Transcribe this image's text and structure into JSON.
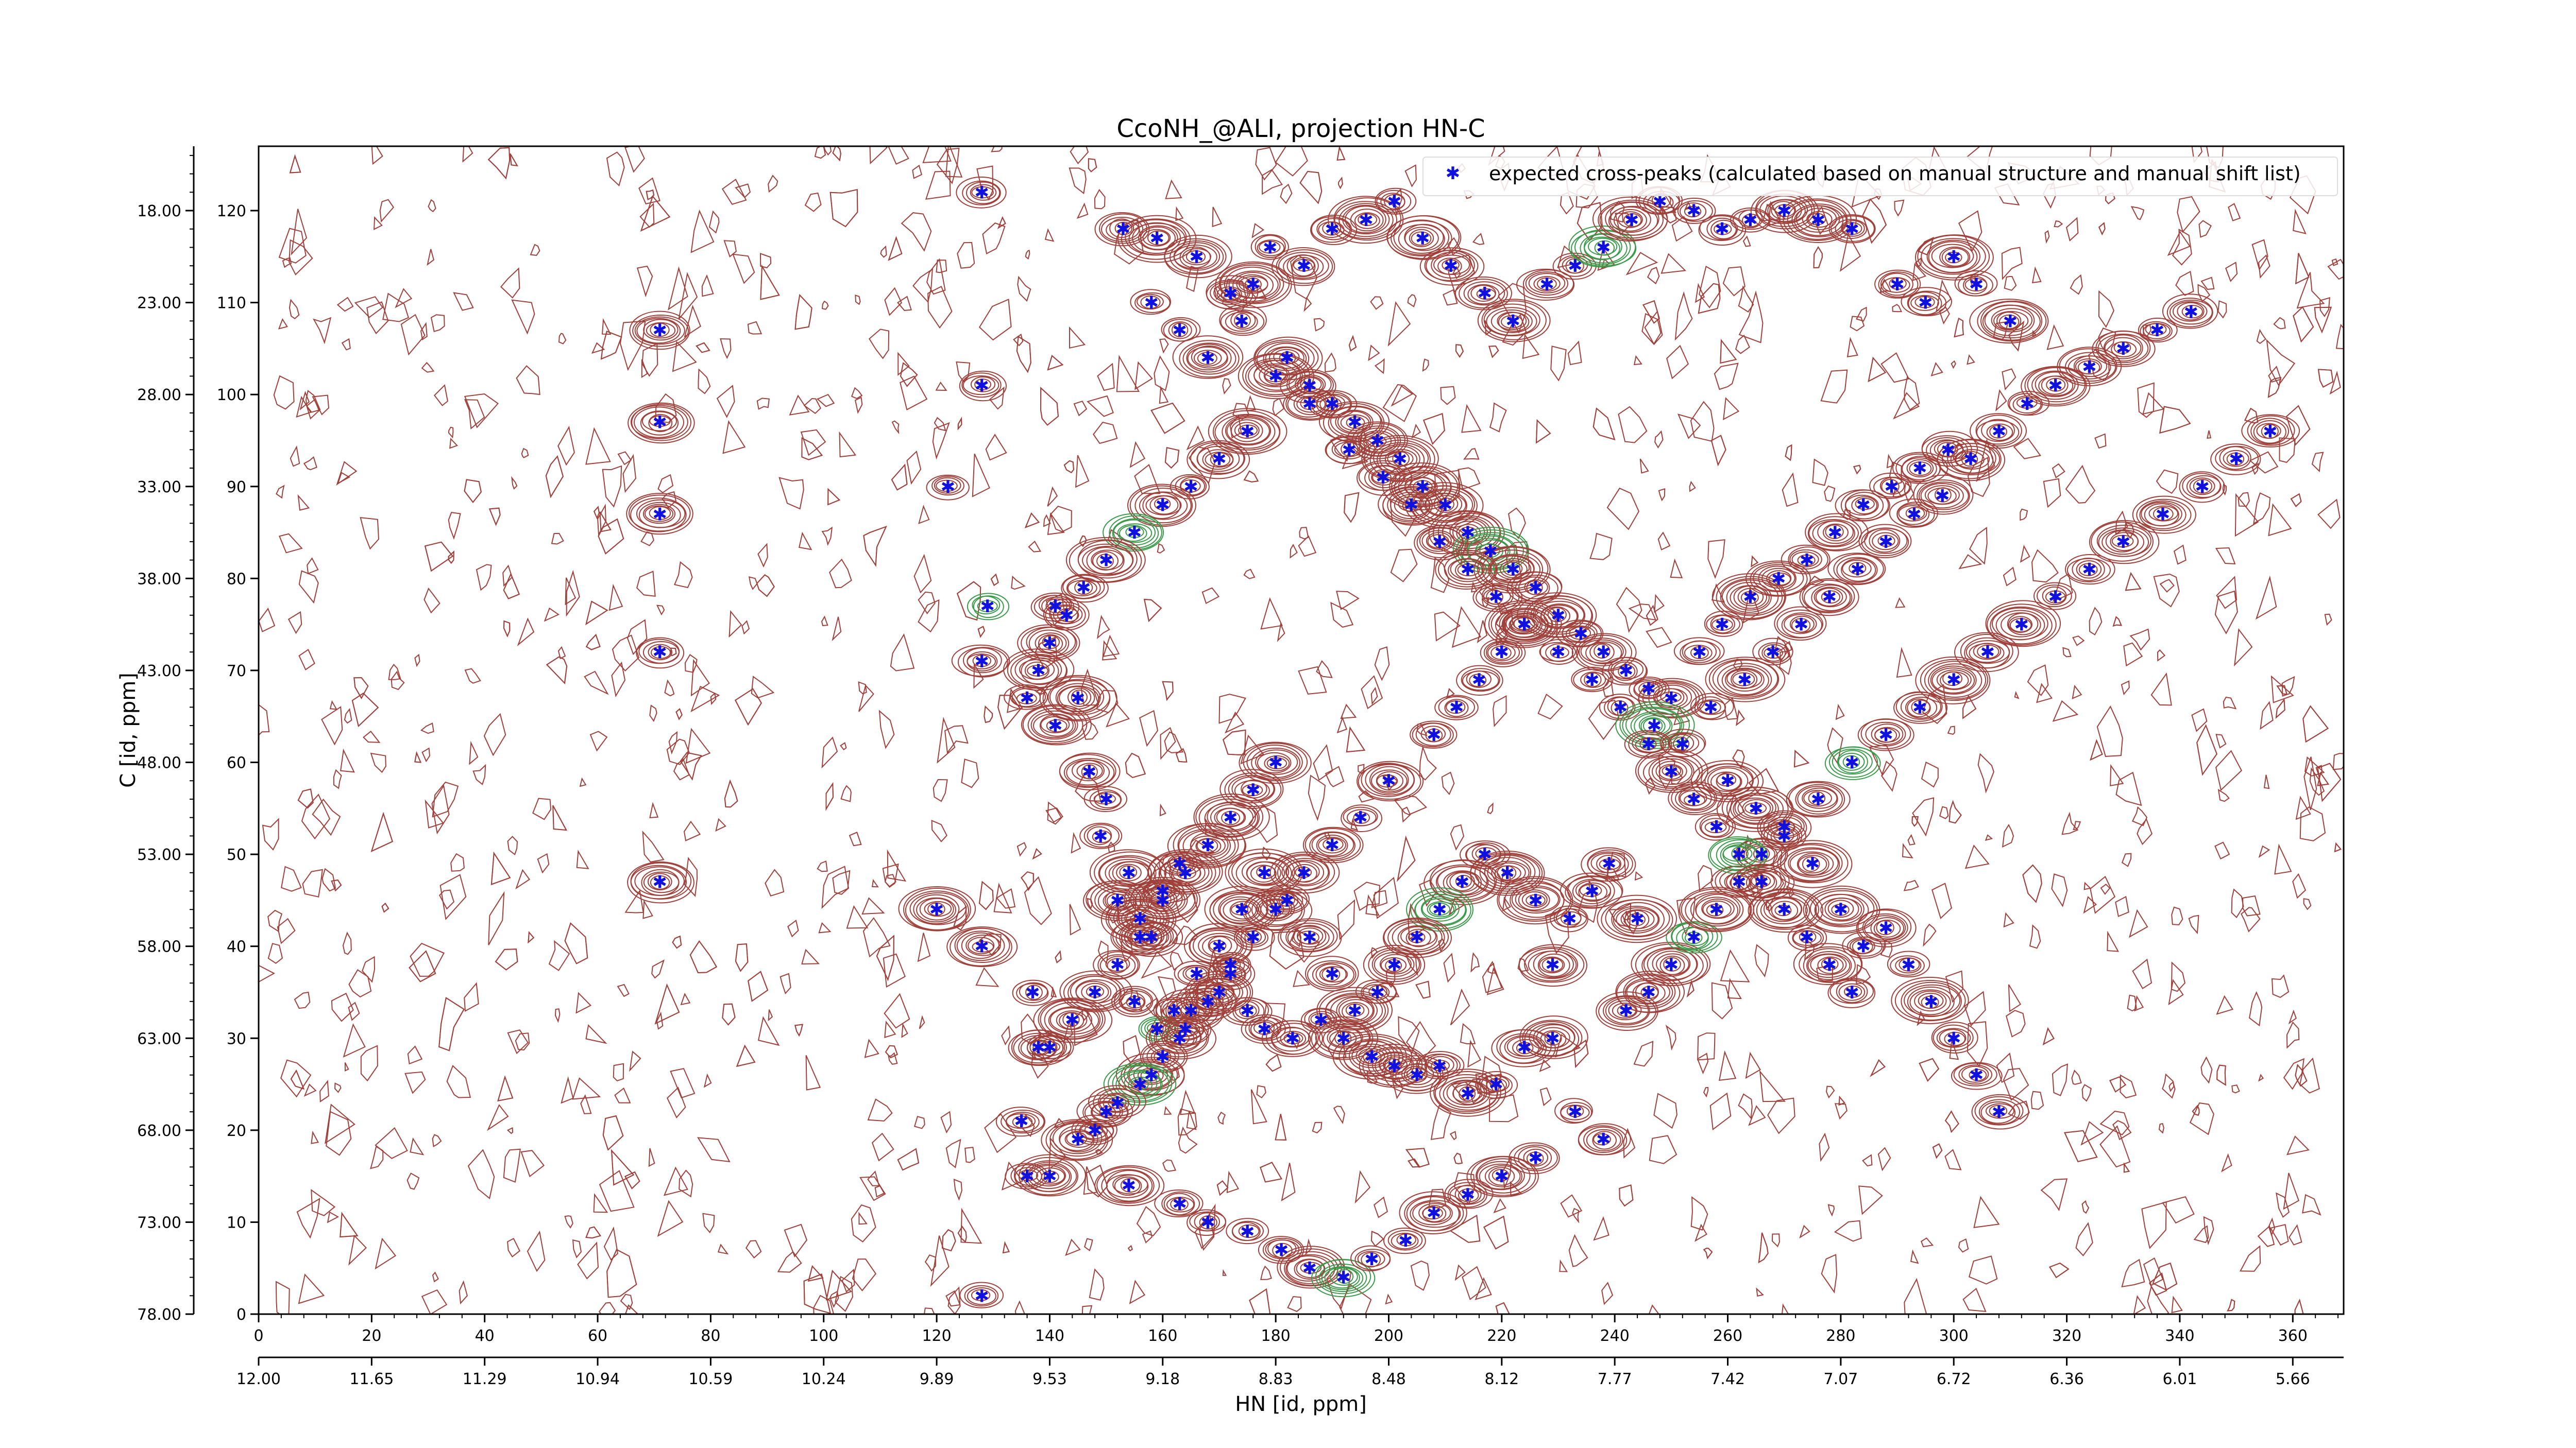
{
  "chart_data": {
    "type": "scatter",
    "title": "CcoNH_@ALI, projection HN-C",
    "xlabel": "HN [id, ppm]",
    "ylabel": "C [id, ppm]",
    "legend": {
      "position": "top-right",
      "label": "expected cross-peaks (calculated based on manual structure and manual shift list)"
    },
    "x_index_ticks": [
      "0",
      "20",
      "40",
      "60",
      "80",
      "100",
      "120",
      "140",
      "160",
      "180",
      "200",
      "220",
      "240",
      "260",
      "280",
      "300",
      "320",
      "340",
      "360"
    ],
    "x_ppm_ticks": [
      "12.00",
      "11.65",
      "11.29",
      "10.94",
      "10.59",
      "10.24",
      "9.89",
      "9.53",
      "9.18",
      "8.83",
      "8.48",
      "8.12",
      "7.77",
      "7.42",
      "7.07",
      "6.72",
      "6.36",
      "6.01",
      "5.66"
    ],
    "y_ppm_ticks": [
      "18.00",
      "23.00",
      "28.00",
      "33.00",
      "38.00",
      "43.00",
      "48.00",
      "53.00",
      "58.00",
      "63.00",
      "68.00",
      "73.00",
      "78.00"
    ],
    "y_index_ticks": [
      "120",
      "110",
      "100",
      "90",
      "80",
      "70",
      "60",
      "50",
      "40",
      "30",
      "20",
      "10",
      "0"
    ],
    "xlim_index": [
      0,
      369
    ],
    "ylim_index": [
      0,
      127
    ],
    "colors": {
      "positive_contour": "#a0403a",
      "negative_contour": "#3a9a4a",
      "peak_marker": "#1010e0"
    },
    "series": [
      {
        "name": "expected cross-peaks (calculated based on manual structure and manual shift list)",
        "points": [
          [
            71,
            107
          ],
          [
            71,
            97
          ],
          [
            71,
            87
          ],
          [
            71,
            72
          ],
          [
            71,
            47
          ],
          [
            128,
            122
          ],
          [
            128,
            101
          ],
          [
            129,
            77
          ],
          [
            128,
            71
          ],
          [
            128,
            40
          ],
          [
            128,
            2
          ],
          [
            122,
            90
          ],
          [
            135,
            21
          ],
          [
            137,
            35
          ],
          [
            138,
            29
          ],
          [
            120,
            44
          ],
          [
            136,
            15
          ],
          [
            141,
            64
          ],
          [
            141,
            77
          ],
          [
            145,
            67
          ],
          [
            147,
            59
          ],
          [
            150,
            56
          ],
          [
            149,
            52
          ],
          [
            154,
            48
          ],
          [
            152,
            45
          ],
          [
            156,
            43
          ],
          [
            158,
            41
          ],
          [
            160,
            46
          ],
          [
            163,
            49
          ],
          [
            155,
            34
          ],
          [
            159,
            31
          ],
          [
            163,
            30
          ],
          [
            165,
            33
          ],
          [
            170,
            35
          ],
          [
            172,
            37
          ],
          [
            175,
            33
          ],
          [
            178,
            31
          ],
          [
            183,
            30
          ],
          [
            188,
            32
          ],
          [
            192,
            30
          ],
          [
            197,
            28
          ],
          [
            201,
            27
          ],
          [
            205,
            26
          ],
          [
            209,
            27
          ],
          [
            214,
            24
          ],
          [
            219,
            25
          ],
          [
            224,
            29
          ],
          [
            229,
            30
          ],
          [
            233,
            22
          ],
          [
            238,
            19
          ],
          [
            242,
            33
          ],
          [
            246,
            35
          ],
          [
            250,
            38
          ],
          [
            254,
            41
          ],
          [
            258,
            44
          ],
          [
            262,
            47
          ],
          [
            266,
            50
          ],
          [
            270,
            53
          ],
          [
            275,
            49
          ],
          [
            280,
            44
          ],
          [
            284,
            40
          ],
          [
            288,
            42
          ],
          [
            292,
            38
          ],
          [
            296,
            34
          ],
          [
            300,
            30
          ],
          [
            304,
            26
          ],
          [
            308,
            22
          ],
          [
            229,
            38
          ],
          [
            232,
            43
          ],
          [
            236,
            46
          ],
          [
            239,
            49
          ],
          [
            244,
            43
          ],
          [
            226,
            45
          ],
          [
            221,
            48
          ],
          [
            217,
            50
          ],
          [
            213,
            47
          ],
          [
            209,
            44
          ],
          [
            205,
            41
          ],
          [
            201,
            38
          ],
          [
            198,
            35
          ],
          [
            194,
            33
          ],
          [
            190,
            37
          ],
          [
            186,
            41
          ],
          [
            182,
            45
          ],
          [
            178,
            48
          ],
          [
            174,
            44
          ],
          [
            170,
            40
          ],
          [
            166,
            37
          ],
          [
            162,
            33
          ],
          [
            158,
            26
          ],
          [
            150,
            22
          ],
          [
            145,
            19
          ],
          [
            140,
            15
          ],
          [
            154,
            14
          ],
          [
            163,
            12
          ],
          [
            168,
            10
          ],
          [
            175,
            9
          ],
          [
            181,
            7
          ],
          [
            186,
            5
          ],
          [
            192,
            4
          ],
          [
            197,
            6
          ],
          [
            203,
            8
          ],
          [
            208,
            11
          ],
          [
            214,
            13
          ],
          [
            220,
            15
          ],
          [
            226,
            17
          ],
          [
            153,
            118
          ],
          [
            159,
            117
          ],
          [
            166,
            115
          ],
          [
            172,
            111
          ],
          [
            176,
            112
          ],
          [
            179,
            116
          ],
          [
            185,
            114
          ],
          [
            190,
            118
          ],
          [
            196,
            119
          ],
          [
            201,
            121
          ],
          [
            206,
            117
          ],
          [
            211,
            114
          ],
          [
            217,
            111
          ],
          [
            222,
            108
          ],
          [
            228,
            112
          ],
          [
            233,
            114
          ],
          [
            238,
            116
          ],
          [
            243,
            119
          ],
          [
            248,
            121
          ],
          [
            254,
            120
          ],
          [
            259,
            118
          ],
          [
            264,
            119
          ],
          [
            270,
            120
          ],
          [
            276,
            119
          ],
          [
            282,
            118
          ],
          [
            290,
            112
          ],
          [
            295,
            110
          ],
          [
            300,
            115
          ],
          [
            304,
            112
          ],
          [
            310,
            108
          ],
          [
            182,
            104
          ],
          [
            186,
            101
          ],
          [
            190,
            99
          ],
          [
            194,
            97
          ],
          [
            198,
            95
          ],
          [
            202,
            93
          ],
          [
            206,
            90
          ],
          [
            210,
            88
          ],
          [
            214,
            85
          ],
          [
            218,
            83
          ],
          [
            222,
            81
          ],
          [
            226,
            79
          ],
          [
            230,
            76
          ],
          [
            234,
            74
          ],
          [
            238,
            72
          ],
          [
            242,
            70
          ],
          [
            246,
            68
          ],
          [
            250,
            67
          ],
          [
            255,
            72
          ],
          [
            259,
            75
          ],
          [
            264,
            78
          ],
          [
            269,
            80
          ],
          [
            274,
            82
          ],
          [
            279,
            85
          ],
          [
            284,
            88
          ],
          [
            289,
            90
          ],
          [
            294,
            92
          ],
          [
            299,
            94
          ],
          [
            175,
            96
          ],
          [
            170,
            93
          ],
          [
            165,
            90
          ],
          [
            160,
            88
          ],
          [
            155,
            85
          ],
          [
            150,
            82
          ],
          [
            146,
            79
          ],
          [
            143,
            76
          ],
          [
            140,
            73
          ],
          [
            138,
            70
          ],
          [
            136,
            67
          ],
          [
            168,
            104
          ],
          [
            163,
            107
          ],
          [
            158,
            110
          ],
          [
            174,
            108
          ],
          [
            180,
            102
          ],
          [
            186,
            99
          ],
          [
            193,
            94
          ],
          [
            199,
            91
          ],
          [
            204,
            88
          ],
          [
            209,
            84
          ],
          [
            214,
            81
          ],
          [
            219,
            78
          ],
          [
            224,
            75
          ],
          [
            230,
            72
          ],
          [
            236,
            69
          ],
          [
            241,
            66
          ],
          [
            247,
            64
          ],
          [
            252,
            62
          ],
          [
            257,
            66
          ],
          [
            263,
            69
          ],
          [
            268,
            72
          ],
          [
            273,
            75
          ],
          [
            278,
            78
          ],
          [
            283,
            81
          ],
          [
            288,
            84
          ],
          [
            293,
            87
          ],
          [
            298,
            89
          ],
          [
            303,
            93
          ],
          [
            308,
            96
          ],
          [
            313,
            99
          ],
          [
            318,
            101
          ],
          [
            324,
            103
          ],
          [
            330,
            105
          ],
          [
            336,
            107
          ],
          [
            342,
            109
          ],
          [
            260,
            58
          ],
          [
            265,
            55
          ],
          [
            270,
            52
          ],
          [
            276,
            56
          ],
          [
            282,
            60
          ],
          [
            288,
            63
          ],
          [
            294,
            66
          ],
          [
            300,
            69
          ],
          [
            306,
            72
          ],
          [
            312,
            75
          ],
          [
            318,
            78
          ],
          [
            324,
            81
          ],
          [
            330,
            84
          ],
          [
            337,
            87
          ],
          [
            344,
            90
          ],
          [
            350,
            93
          ],
          [
            356,
            96
          ],
          [
            200,
            58
          ],
          [
            195,
            54
          ],
          [
            190,
            51
          ],
          [
            185,
            48
          ],
          [
            180,
            44
          ],
          [
            176,
            41
          ],
          [
            172,
            38
          ],
          [
            168,
            34
          ],
          [
            164,
            31
          ],
          [
            160,
            28
          ],
          [
            156,
            25
          ],
          [
            152,
            23
          ],
          [
            148,
            20
          ],
          [
            208,
            63
          ],
          [
            212,
            66
          ],
          [
            216,
            69
          ],
          [
            220,
            72
          ],
          [
            224,
            75
          ],
          [
            180,
            60
          ],
          [
            176,
            57
          ],
          [
            172,
            54
          ],
          [
            168,
            51
          ],
          [
            164,
            48
          ],
          [
            160,
            45
          ],
          [
            156,
            41
          ],
          [
            152,
            38
          ],
          [
            148,
            35
          ],
          [
            144,
            32
          ],
          [
            140,
            29
          ],
          [
            246,
            62
          ],
          [
            250,
            59
          ],
          [
            254,
            56
          ],
          [
            258,
            53
          ],
          [
            262,
            50
          ],
          [
            266,
            47
          ],
          [
            270,
            44
          ],
          [
            274,
            41
          ],
          [
            278,
            38
          ],
          [
            282,
            35
          ]
        ]
      }
    ]
  }
}
